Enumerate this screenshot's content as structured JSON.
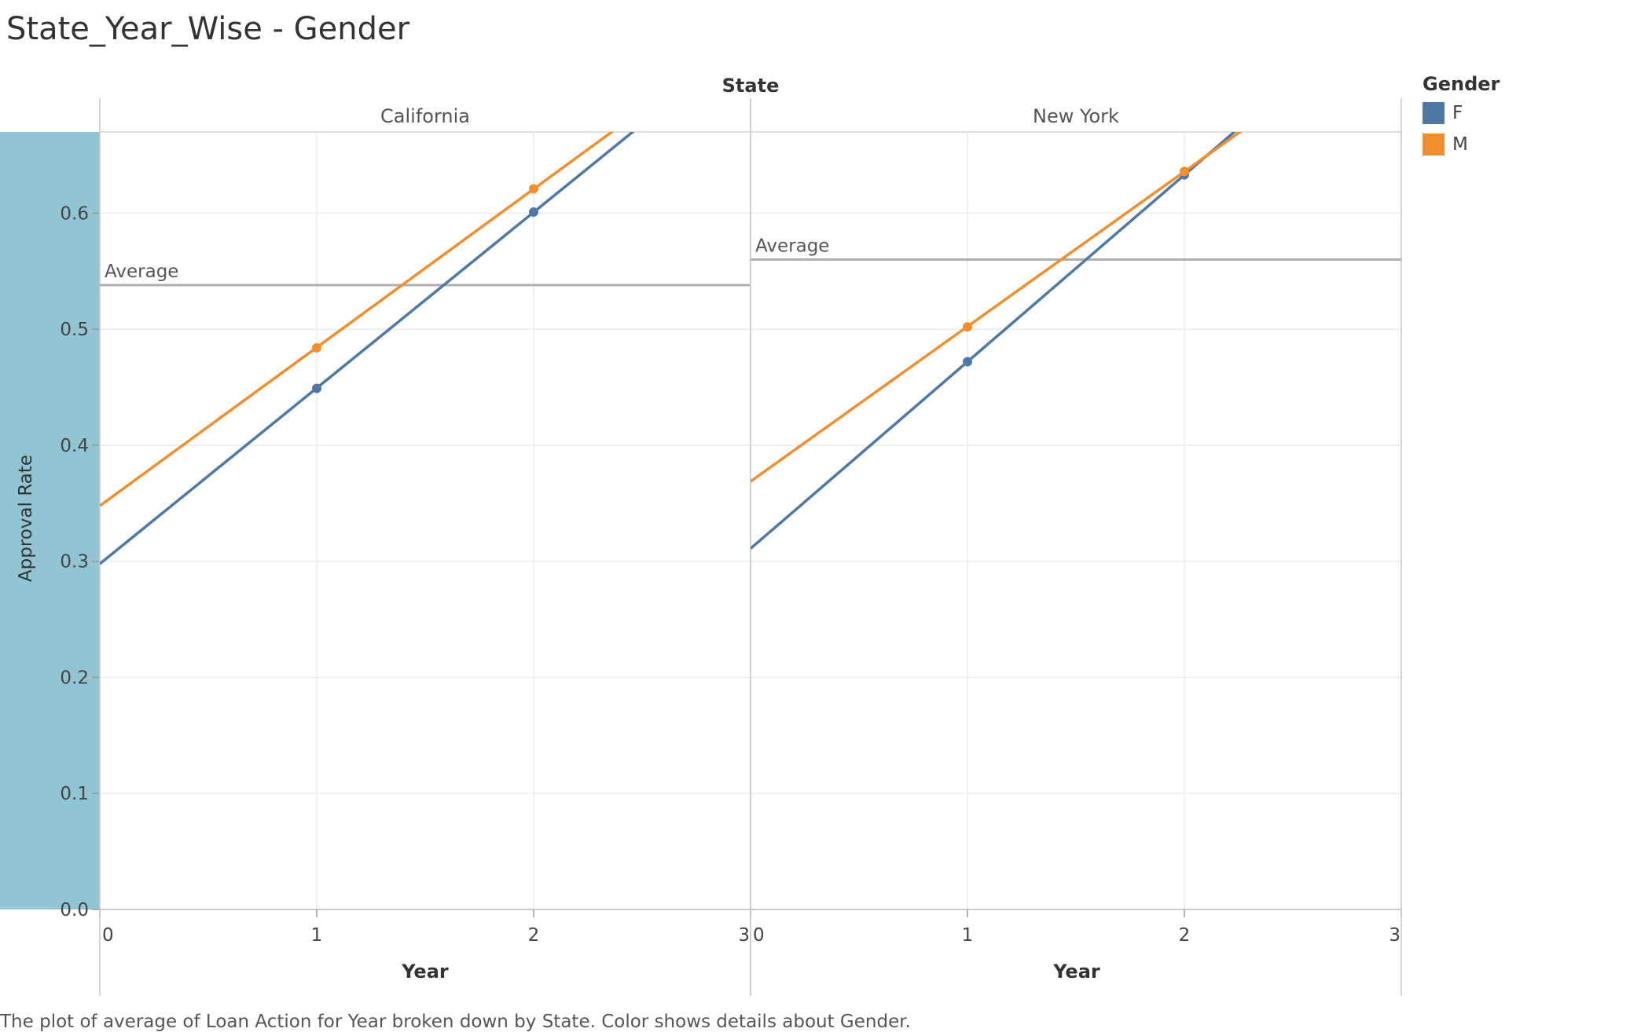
{
  "title": "State_Year_Wise - Gender",
  "caption": "The plot of average of Loan Action for Year broken down by State.  Color shows details about Gender.",
  "legend": {
    "title": "Gender",
    "items": [
      {
        "label": "F",
        "color": "#4e79a7"
      },
      {
        "label": "M",
        "color": "#f28e2b"
      }
    ]
  },
  "chart_data": {
    "type": "line",
    "column_header": "State",
    "panels": [
      "California",
      "New York"
    ],
    "xlabel": "Year",
    "ylabel": "Approval Rate",
    "x_ticks": [
      0,
      1,
      2,
      3
    ],
    "y_ticks": [
      0.0,
      0.1,
      0.2,
      0.3,
      0.4,
      0.5,
      0.6
    ],
    "xlim": [
      0,
      3
    ],
    "ylim": [
      0,
      0.67
    ],
    "reference_line_label": "Average",
    "grid": true,
    "legend_position": "top-right",
    "series": [
      {
        "name": "F",
        "color": "#4e79a7",
        "panel": "California",
        "x": [
          0,
          1,
          2
        ],
        "y": [
          0.298,
          0.449,
          0.601
        ]
      },
      {
        "name": "M",
        "color": "#f28e2b",
        "panel": "California",
        "x": [
          0,
          1,
          2
        ],
        "y": [
          0.348,
          0.484,
          0.621
        ]
      },
      {
        "name": "F",
        "color": "#4e79a7",
        "panel": "New York",
        "x": [
          0,
          1,
          2
        ],
        "y": [
          0.311,
          0.472,
          0.633
        ]
      },
      {
        "name": "M",
        "color": "#f28e2b",
        "panel": "New York",
        "x": [
          0,
          1,
          2
        ],
        "y": [
          0.369,
          0.502,
          0.636
        ]
      }
    ],
    "averages": [
      {
        "panel": "California",
        "value": 0.538
      },
      {
        "panel": "New York",
        "value": 0.56
      }
    ]
  }
}
